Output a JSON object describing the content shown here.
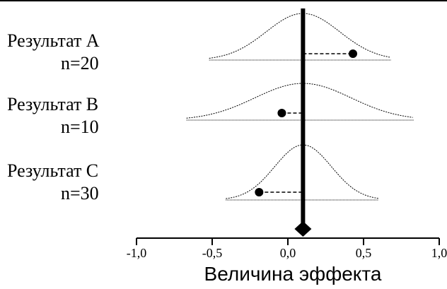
{
  "chart_data": {
    "type": "scatter",
    "title": "",
    "xlabel": "Величина эффекта",
    "ylabel": "",
    "xlim": [
      -1.0,
      1.0
    ],
    "xticks": [
      -1.0,
      -0.5,
      0.0,
      0.5,
      1.0
    ],
    "xtick_labels": [
      "-1,0",
      "-0,5",
      "0,0",
      "0,5",
      "1,0"
    ],
    "pooled_effect": 0.1,
    "grid": false,
    "studies": [
      {
        "label": "Результат A",
        "n_label": "n=20",
        "n": 20,
        "effect": 0.43,
        "ci": [
          -0.52,
          0.68
        ]
      },
      {
        "label": "Результат B",
        "n_label": "n=10",
        "n": 10,
        "effect": -0.04,
        "ci": [
          -0.67,
          0.83
        ]
      },
      {
        "label": "Результат C",
        "n_label": "n=30",
        "n": 30,
        "effect": -0.19,
        "ci": [
          -0.41,
          0.6
        ]
      }
    ]
  }
}
